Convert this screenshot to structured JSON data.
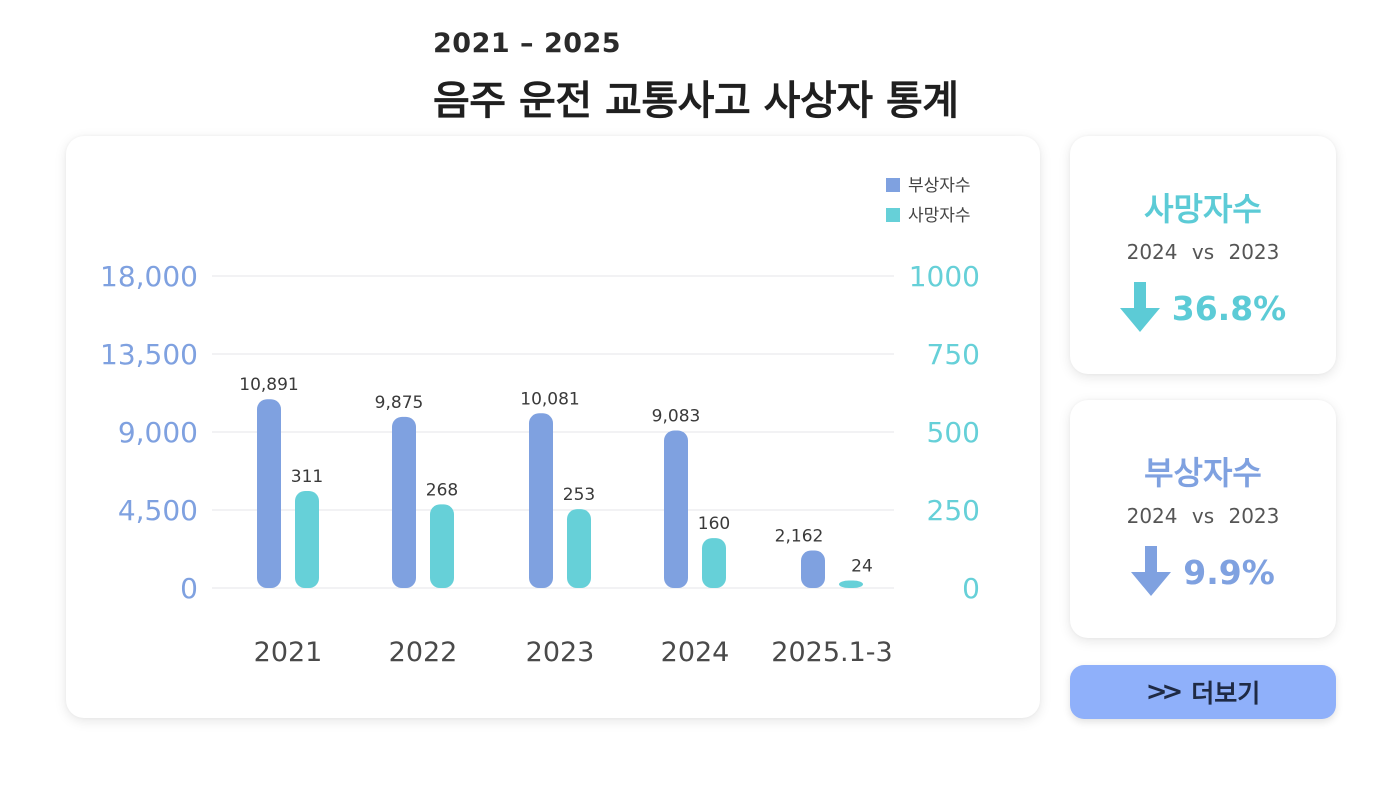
{
  "header": {
    "subtitle": "2021 – 2025",
    "title": "음주 운전 교통사고 사상자 통계"
  },
  "colors": {
    "injuries": "#7fa1e0",
    "deaths": "#66d0d8",
    "left_axis": "#7fa1e0",
    "right_axis": "#66d0d8",
    "deaths_stat": "#5ccbd6",
    "injuries_stat": "#7fa1e0",
    "button": "#8fb0fa"
  },
  "chart_data": {
    "type": "bar",
    "categories": [
      "2021",
      "2022",
      "2023",
      "2024",
      "2025.1-3"
    ],
    "series": [
      {
        "name": "부상자수",
        "axis": "left",
        "values": [
          10891,
          9875,
          10081,
          9083,
          2162
        ],
        "labels": [
          "10,891",
          "9,875",
          "10,081",
          "9,083",
          "2,162"
        ]
      },
      {
        "name": "사망자수",
        "axis": "right",
        "values": [
          311,
          268,
          253,
          160,
          24
        ],
        "labels": [
          "311",
          "268",
          "253",
          "160",
          "24"
        ]
      }
    ],
    "y_left": {
      "ylim": [
        0,
        18000
      ],
      "ticks": [
        "0",
        "4,500",
        "9,000",
        "13,500",
        "18,000"
      ]
    },
    "y_right": {
      "ylim": [
        0,
        1000
      ],
      "ticks": [
        "0",
        "250",
        "500",
        "750",
        "1000"
      ]
    },
    "grid": true,
    "legend": "top-right"
  },
  "stats": {
    "deaths": {
      "title": "사망자수",
      "compare": "2024 vs 2023",
      "direction": "down",
      "value": "36.8%"
    },
    "injuries": {
      "title": "부상자수",
      "compare": "2024 vs 2023",
      "direction": "down",
      "value": "9.9%"
    }
  },
  "more_button": {
    "label": "더보기",
    "icon": "double-chevron-right-icon"
  }
}
